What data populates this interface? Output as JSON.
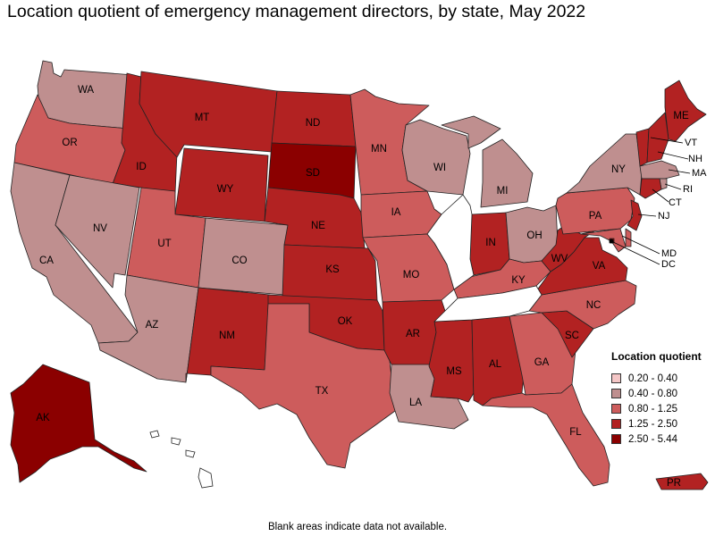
{
  "title": "Location quotient of emergency management directors, by state, May 2022",
  "footnote": "Blank areas indicate data not available.",
  "legend": {
    "title": "Location quotient",
    "items": [
      {
        "label": "0.20 - 0.40",
        "color": "#f4c6c6"
      },
      {
        "label": "0.40 - 0.80",
        "color": "#bf8f8f"
      },
      {
        "label": "0.80 - 1.25",
        "color": "#cd5c5c"
      },
      {
        "label": "1.25 - 2.50",
        "color": "#b22222"
      },
      {
        "label": "2.50 - 5.44",
        "color": "#8b0000"
      }
    ]
  },
  "states": [
    {
      "abbr": "WA",
      "bin": 1
    },
    {
      "abbr": "OR",
      "bin": 2
    },
    {
      "abbr": "CA",
      "bin": 1
    },
    {
      "abbr": "ID",
      "bin": 3
    },
    {
      "abbr": "NV",
      "bin": 1
    },
    {
      "abbr": "MT",
      "bin": 3
    },
    {
      "abbr": "WY",
      "bin": 3
    },
    {
      "abbr": "UT",
      "bin": 2
    },
    {
      "abbr": "AZ",
      "bin": 1
    },
    {
      "abbr": "CO",
      "bin": 1
    },
    {
      "abbr": "NM",
      "bin": 3
    },
    {
      "abbr": "ND",
      "bin": 3
    },
    {
      "abbr": "SD",
      "bin": 4
    },
    {
      "abbr": "NE",
      "bin": 3
    },
    {
      "abbr": "KS",
      "bin": 3
    },
    {
      "abbr": "OK",
      "bin": 3
    },
    {
      "abbr": "TX",
      "bin": 2
    },
    {
      "abbr": "MN",
      "bin": 2
    },
    {
      "abbr": "IA",
      "bin": 2
    },
    {
      "abbr": "MO",
      "bin": 2
    },
    {
      "abbr": "AR",
      "bin": 3
    },
    {
      "abbr": "LA",
      "bin": 1
    },
    {
      "abbr": "WI",
      "bin": 1
    },
    {
      "abbr": "MI",
      "bin": 1
    },
    {
      "abbr": "IN",
      "bin": 3
    },
    {
      "abbr": "OH",
      "bin": 1
    },
    {
      "abbr": "KY",
      "bin": 2
    },
    {
      "abbr": "MS",
      "bin": 3
    },
    {
      "abbr": "AL",
      "bin": 3
    },
    {
      "abbr": "GA",
      "bin": 2
    },
    {
      "abbr": "FL",
      "bin": 2
    },
    {
      "abbr": "SC",
      "bin": 3
    },
    {
      "abbr": "NC",
      "bin": 2
    },
    {
      "abbr": "VA",
      "bin": 3
    },
    {
      "abbr": "WV",
      "bin": 3
    },
    {
      "abbr": "PA",
      "bin": 2
    },
    {
      "abbr": "NY",
      "bin": 1
    },
    {
      "abbr": "ME",
      "bin": 3
    },
    {
      "abbr": "VT",
      "bin": 3
    },
    {
      "abbr": "NH",
      "bin": 3
    },
    {
      "abbr": "MA",
      "bin": 1
    },
    {
      "abbr": "RI",
      "bin": 1
    },
    {
      "abbr": "CT",
      "bin": 3
    },
    {
      "abbr": "NJ",
      "bin": 3
    },
    {
      "abbr": "DE",
      "bin": 2
    },
    {
      "abbr": "MD",
      "bin": 2
    },
    {
      "abbr": "DC",
      "bin": 4
    },
    {
      "abbr": "AK",
      "bin": 4
    },
    {
      "abbr": "PR",
      "bin": 3
    }
  ],
  "no_data_states": [
    "IL",
    "TN",
    "HI"
  ]
}
